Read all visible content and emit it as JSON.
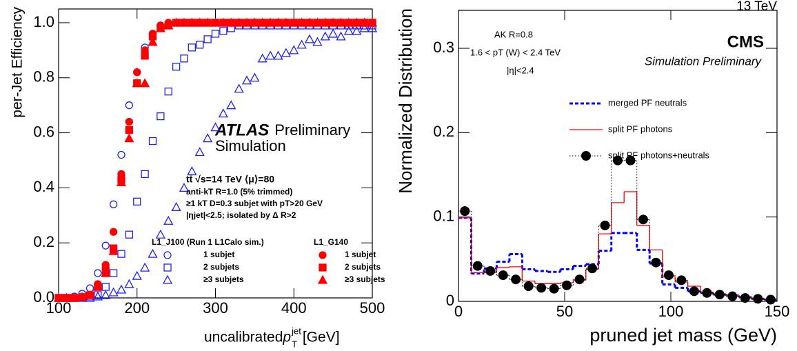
{
  "chart_data": [
    {
      "type": "scatter",
      "y_label": "per-Jet Efficiency",
      "x_label": [
        "uncalibrated ",
        "p",
        "jet",
        "T",
        " [GeV]"
      ],
      "annotations": {
        "experiment": "ATLAS",
        "status": "Preliminary",
        "status2": "Simulation",
        "lines": [
          "tt̄ √s=14 TeV ⟨μ⟩=80",
          "anti-kT R=1.0 (5% trimmed)",
          "≥1 kT D=0.3 subjet with pT>20 GeV",
          "|ηjet|<2.5; isolated by Δ R>2"
        ]
      },
      "legend_titles": [
        "L1_J100 (Run 1 L1Calo sim.)",
        "L1_G140"
      ],
      "xlim": [
        100,
        500
      ],
      "xticks": [
        100,
        200,
        300,
        400,
        500
      ],
      "ylim": [
        0,
        1.05
      ],
      "yticks": [
        {
          "value": 0,
          "label": "0.0"
        },
        0.2,
        0.4,
        0.6,
        0.8,
        {
          "value": 1,
          "label": "1.0"
        }
      ],
      "x": [
        100,
        110,
        120,
        130,
        140,
        150,
        160,
        170,
        180,
        190,
        200,
        210,
        220,
        230,
        240,
        250,
        260,
        270,
        280,
        290,
        300,
        310,
        320,
        330,
        340,
        350,
        360,
        370,
        380,
        390,
        400,
        410,
        420,
        430,
        440,
        450,
        460,
        470,
        480,
        490,
        500
      ],
      "series": [
        {
          "name": "1 subjet",
          "group": 0,
          "marker": "circle",
          "filled": false,
          "color": "#1f1fff",
          "values": [
            0,
            0,
            0.005,
            0.015,
            0.035,
            0.09,
            0.19,
            0.34,
            0.52,
            0.7,
            0.82,
            0.91,
            0.96,
            0.99,
            0.995,
            1,
            1,
            1,
            1,
            1,
            1,
            1,
            1,
            1,
            1,
            1,
            1,
            1,
            1,
            1,
            1,
            1,
            1,
            1,
            1,
            1,
            1,
            1,
            1,
            1,
            1
          ]
        },
        {
          "name": "2 subjets",
          "group": 0,
          "marker": "square",
          "filled": false,
          "color": "#1f1fff",
          "values": [
            0,
            0,
            0,
            0.002,
            0.005,
            0.01,
            0.04,
            0.09,
            0.16,
            0.23,
            0.35,
            0.45,
            0.57,
            0.66,
            0.75,
            0.84,
            0.87,
            0.91,
            0.92,
            0.94,
            0.96,
            0.97,
            0.98,
            0.99,
            0.99,
            0.99,
            0.99,
            0.99,
            0.99,
            0.99,
            0.99,
            0.99,
            0.99,
            0.99,
            0.99,
            0.99,
            0.99,
            0.99,
            0.99,
            0.99,
            0.99
          ]
        },
        {
          "name": "≥3 subjets",
          "group": 0,
          "marker": "triangle",
          "filled": false,
          "color": "#1f1fff",
          "values": [
            0,
            0,
            0,
            0,
            0,
            0.005,
            0.01,
            0.02,
            0.03,
            0.05,
            0.08,
            0.11,
            0.16,
            0.23,
            0.28,
            0.33,
            0.4,
            0.46,
            0.53,
            0.58,
            0.62,
            0.67,
            0.7,
            0.76,
            0.79,
            0.8,
            0.87,
            0.88,
            0.88,
            0.89,
            0.9,
            0.92,
            0.94,
            0.93,
            0.95,
            0.96,
            0.95,
            0.97,
            0.97,
            0.98,
            0.98
          ]
        },
        {
          "name": "1 subjet",
          "group": 1,
          "marker": "circle",
          "filled": true,
          "color": "#ff0000",
          "values": [
            0,
            0,
            0,
            0.003,
            0.01,
            0.05,
            0.12,
            0.24,
            0.45,
            0.64,
            0.82,
            0.9,
            0.96,
            0.99,
            1,
            1,
            1,
            1,
            1,
            1,
            1,
            1,
            1,
            1,
            1,
            1,
            1,
            1,
            1,
            1,
            1,
            1,
            1,
            1,
            1,
            1,
            1,
            1,
            1,
            1,
            1
          ]
        },
        {
          "name": "2 subjets",
          "group": 1,
          "marker": "square",
          "filled": true,
          "color": "#ff0000",
          "values": [
            0,
            0,
            0,
            0.003,
            0.01,
            0.04,
            0.1,
            0.18,
            0.43,
            0.61,
            0.78,
            0.88,
            0.95,
            0.98,
            0.99,
            1,
            1,
            1,
            1,
            1,
            1,
            1,
            1,
            1,
            1,
            1,
            1,
            1,
            1,
            1,
            1,
            1,
            1,
            1,
            1,
            1,
            1,
            1,
            1,
            1,
            1
          ]
        },
        {
          "name": "≥3 subjets",
          "group": 1,
          "marker": "triangle",
          "filled": true,
          "color": "#ff0000",
          "values": [
            0,
            0,
            0,
            0.003,
            0.01,
            0.04,
            0.09,
            0.17,
            0.42,
            0.58,
            0.78,
            0.78,
            0.93,
            0.98,
            0.99,
            1,
            1,
            1,
            1,
            1,
            1,
            1,
            1,
            1,
            1,
            1,
            1,
            1,
            1,
            1,
            1,
            1,
            1,
            1,
            1,
            1,
            1,
            1,
            1,
            1,
            1
          ]
        }
      ]
    },
    {
      "type": "histogram",
      "energy": "13 TeV",
      "y_label": "Normalized Distribution",
      "x_label": "pruned jet mass (GeV)",
      "annotations": {
        "experiment": "CMS",
        "status": "Simulation Preliminary",
        "lines": [
          "AK R=0.8",
          "1.6 < pT (W) < 2.4 TeV",
          "|η|<2.4"
        ]
      },
      "xlim": [
        0,
        150
      ],
      "xticks": [
        0,
        50,
        100,
        150
      ],
      "ylim": [
        0,
        0.345
      ],
      "yticks": [
        0,
        0.1,
        0.2,
        0.3
      ],
      "bins": [
        0,
        6,
        12,
        18,
        24,
        30,
        36,
        42,
        48,
        54,
        60,
        66,
        72,
        78,
        84,
        90,
        96,
        102,
        108,
        114,
        120,
        126,
        132,
        138,
        144,
        150
      ],
      "series": [
        {
          "name": "merged PF neutrals",
          "style": "dashed",
          "color": "#0000ff",
          "values": [
            0.099,
            0.033,
            0.039,
            0.047,
            0.056,
            0.038,
            0.036,
            0.035,
            0.038,
            0.042,
            0.044,
            0.06,
            0.081,
            0.081,
            0.061,
            0.045,
            0.02,
            0.016,
            0.012,
            0.01,
            0.008,
            0.007,
            0.005,
            0.003,
            0.002
          ]
        },
        {
          "name": "split PF photons",
          "style": "solid",
          "color": "#ff0000",
          "values": [
            0.099,
            0.034,
            0.034,
            0.04,
            0.041,
            0.024,
            0.021,
            0.021,
            0.022,
            0.025,
            0.038,
            0.08,
            0.117,
            0.13,
            0.09,
            0.061,
            0.029,
            0.023,
            0.018,
            0.011,
            0.009,
            0.007,
            0.005,
            0.003,
            0.002
          ]
        },
        {
          "name": "split PF photons+neutrals",
          "style": "points",
          "color": "#000000",
          "values": [
            0.107,
            0.042,
            0.036,
            0.031,
            0.026,
            0.018,
            0.016,
            0.015,
            0.019,
            0.026,
            0.039,
            0.09,
            0.167,
            0.167,
            0.097,
            0.046,
            0.031,
            0.025,
            0.012,
            0.01,
            0.008,
            0.006,
            0.004,
            0.003,
            0.002
          ]
        }
      ]
    }
  ]
}
